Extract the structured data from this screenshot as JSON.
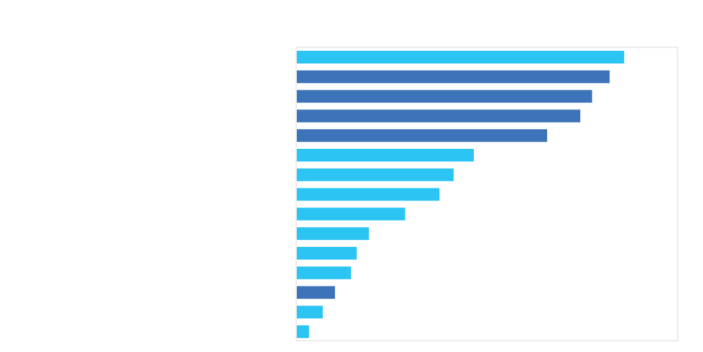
{
  "chart_data": {
    "type": "bar",
    "orientation": "horizontal",
    "title": "",
    "xlabel": "",
    "ylabel": "",
    "xlim": [
      0,
      1
    ],
    "grid": false,
    "legend": "none",
    "colors": {
      "light_blue": "#2CC4F2",
      "dark_blue": "#3D73B8",
      "frame": "#D9D9D9"
    },
    "values": [
      0.858,
      0.82,
      0.774,
      0.743,
      0.656,
      0.464,
      0.411,
      0.374,
      0.284,
      0.189,
      0.157,
      0.142,
      0.1,
      0.068,
      0.032
    ],
    "bar_colors": [
      "light_blue",
      "dark_blue",
      "dark_blue",
      "dark_blue",
      "dark_blue",
      "light_blue",
      "light_blue",
      "light_blue",
      "light_blue",
      "light_blue",
      "light_blue",
      "light_blue",
      "dark_blue",
      "light_blue",
      "light_blue"
    ]
  }
}
